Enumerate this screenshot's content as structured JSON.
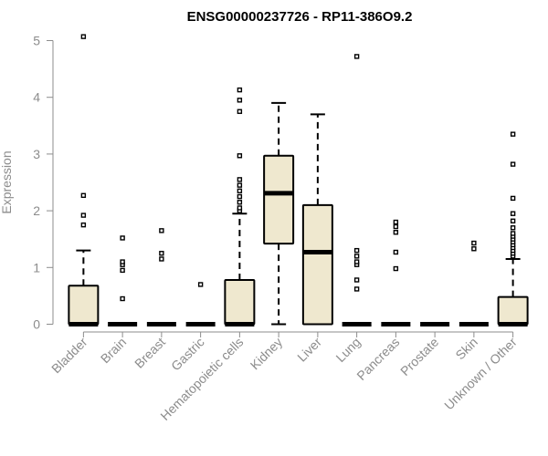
{
  "chart_data": {
    "type": "boxplot",
    "title": "ENSG00000237726 - RP11-386O9.2",
    "ylabel": "Expression",
    "ylim": [
      0,
      5.1
    ],
    "yticks": [
      0,
      1,
      2,
      3,
      4,
      5
    ],
    "categories": [
      "Bladder",
      "Brain",
      "Breast",
      "Gastric",
      "Hematopoietic cells",
      "Kidney",
      "Liver",
      "Lung",
      "Pancreas",
      "Prostate",
      "Skin",
      "Unknown / Other"
    ],
    "boxes": [
      {
        "name": "Bladder",
        "q1": 0,
        "median": 0,
        "q3": 0.68,
        "whisker_low": 0,
        "whisker_high": 1.3,
        "outliers": [
          1.75,
          1.92,
          2.27,
          5.07
        ]
      },
      {
        "name": "Brain",
        "q1": 0,
        "median": 0,
        "q3": 0,
        "whisker_low": 0,
        "whisker_high": 0,
        "outliers": [
          0.45,
          0.95,
          1.05,
          1.1,
          1.52
        ]
      },
      {
        "name": "Breast",
        "q1": 0,
        "median": 0,
        "q3": 0,
        "whisker_low": 0,
        "whisker_high": 0,
        "outliers": [
          1.15,
          1.25,
          1.65
        ]
      },
      {
        "name": "Gastric",
        "q1": 0,
        "median": 0,
        "q3": 0,
        "whisker_low": 0,
        "whisker_high": 0,
        "outliers": [
          0.7
        ]
      },
      {
        "name": "Hematopoietic cells",
        "q1": 0,
        "median": 0,
        "q3": 0.78,
        "whisker_low": 0,
        "whisker_high": 1.95,
        "outliers": [
          2.0,
          2.05,
          2.15,
          2.25,
          2.35,
          2.45,
          2.55,
          2.97,
          3.75,
          3.95,
          4.13
        ]
      },
      {
        "name": "Kidney",
        "q1": 1.42,
        "median": 2.31,
        "q3": 2.97,
        "whisker_low": 0,
        "whisker_high": 3.9,
        "outliers": []
      },
      {
        "name": "Liver",
        "q1": 0,
        "median": 1.27,
        "q3": 2.1,
        "whisker_low": 0,
        "whisker_high": 3.7,
        "outliers": []
      },
      {
        "name": "Lung",
        "q1": 0,
        "median": 0,
        "q3": 0,
        "whisker_low": 0,
        "whisker_high": 0,
        "outliers": [
          0.62,
          0.78,
          1.05,
          1.1,
          1.2,
          1.3,
          4.72
        ]
      },
      {
        "name": "Pancreas",
        "q1": 0,
        "median": 0,
        "q3": 0,
        "whisker_low": 0,
        "whisker_high": 0,
        "outliers": [
          0.98,
          1.27,
          1.62,
          1.72,
          1.8
        ]
      },
      {
        "name": "Prostate",
        "q1": 0,
        "median": 0,
        "q3": 0,
        "whisker_low": 0,
        "whisker_high": 0,
        "outliers": []
      },
      {
        "name": "Skin",
        "q1": 0,
        "median": 0,
        "q3": 0,
        "whisker_low": 0,
        "whisker_high": 0,
        "outliers": [
          1.33,
          1.43
        ]
      },
      {
        "name": "Unknown / Other",
        "q1": 0,
        "median": 0,
        "q3": 0.48,
        "whisker_low": 0,
        "whisker_high": 1.15,
        "outliers": [
          1.2,
          1.25,
          1.3,
          1.35,
          1.4,
          1.45,
          1.5,
          1.55,
          1.6,
          1.7,
          1.82,
          1.95,
          2.22,
          2.82,
          3.35
        ]
      }
    ],
    "colors": {
      "box_fill": "#efe8cf",
      "box_stroke": "#000000",
      "axis": "#8c8c8c"
    },
    "grid": false,
    "legend": "none"
  }
}
